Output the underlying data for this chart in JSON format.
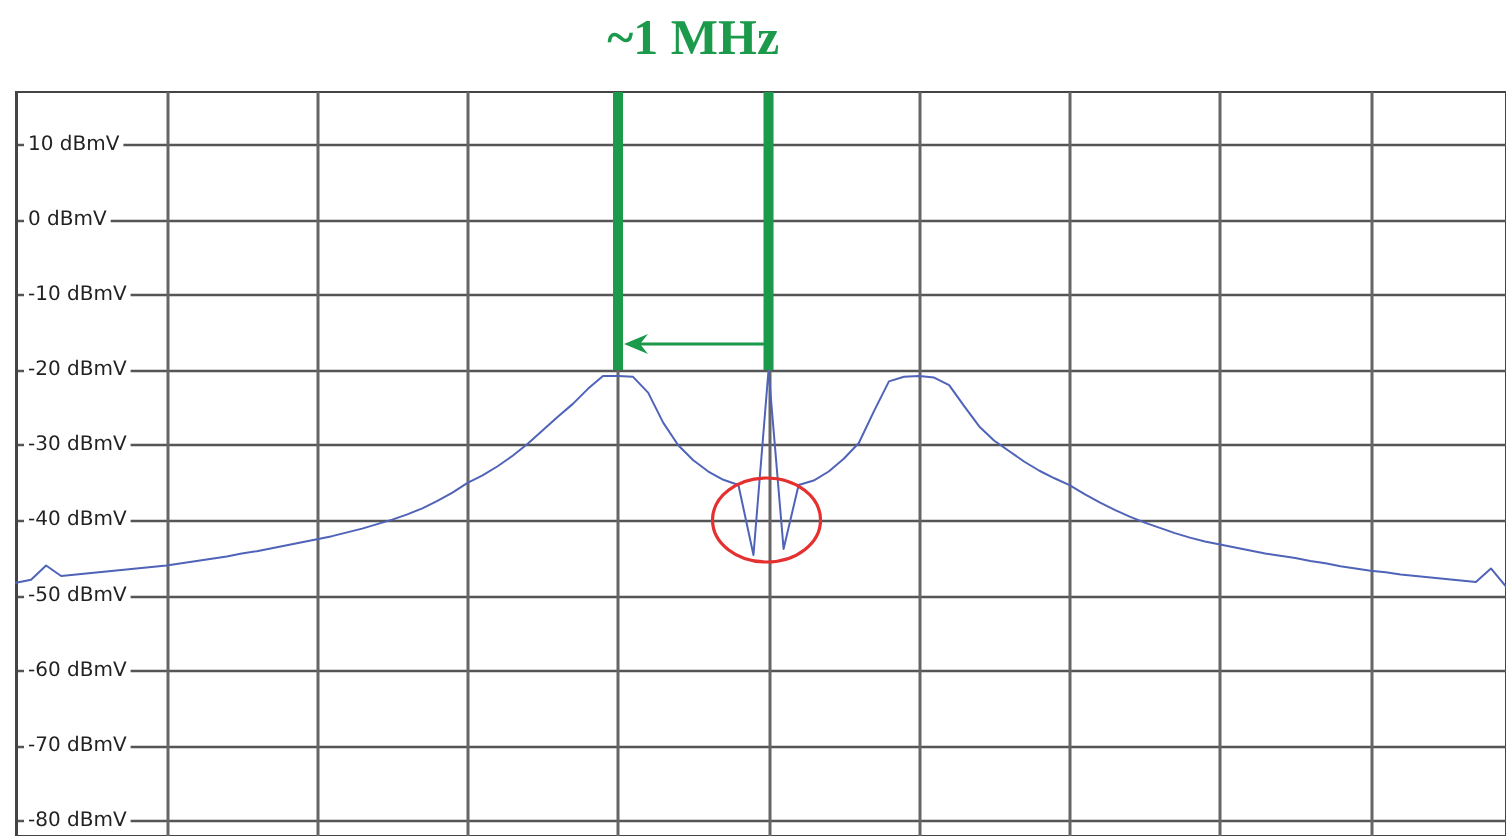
{
  "chart_data": {
    "type": "line",
    "categories": [
      null,
      null,
      null,
      null,
      null,
      null,
      null,
      null,
      null,
      null,
      null,
      null,
      null,
      null,
      null,
      null,
      null,
      null,
      null,
      null,
      null,
      null,
      null,
      null,
      null,
      null,
      null,
      null,
      null,
      null,
      null,
      null,
      null,
      null,
      null,
      null,
      null,
      null,
      null,
      null,
      null,
      null,
      null,
      null,
      null,
      null,
      null,
      null,
      null,
      null,
      null,
      null,
      null,
      null,
      null,
      null,
      null,
      null,
      null,
      null,
      null,
      null,
      null,
      null,
      null,
      null,
      null,
      null,
      null,
      null,
      null,
      null,
      null,
      null,
      null,
      null,
      null,
      null,
      null,
      null,
      null,
      null,
      null,
      null,
      null,
      null,
      null,
      null,
      null,
      null,
      null,
      null,
      null,
      null,
      null,
      null,
      null,
      null,
      null,
      null
    ],
    "series": [
      {
        "color": "#4f63b8",
        "values": [
          -48.3,
          -47.9,
          -46.0,
          -47.4,
          -47.2,
          -47.0,
          -46.8,
          -46.6,
          -46.4,
          -46.2,
          -46.0,
          -45.7,
          -45.4,
          -45.1,
          -44.8,
          -44.4,
          -44.1,
          -43.7,
          -43.3,
          -42.9,
          -42.5,
          -42.1,
          -41.6,
          -41.1,
          -40.5,
          -39.9,
          -39.2,
          -38.4,
          -37.4,
          -36.3,
          -35.0,
          -34.0,
          -32.8,
          -31.4,
          -29.8,
          -28.0,
          -26.2,
          -24.5,
          -22.5,
          -20.8,
          -20.8,
          -20.9,
          -23.0,
          -27.0,
          -30.0,
          -32.0,
          -33.5,
          -34.6,
          -35.3,
          -44.6,
          -20.0,
          -43.8,
          -35.3,
          -34.7,
          -33.5,
          -31.8,
          -29.7,
          -25.5,
          -21.5,
          -20.9,
          -20.8,
          -21.0,
          -22.0,
          -24.8,
          -27.5,
          -29.4,
          -30.8,
          -32.2,
          -33.4,
          -34.4,
          -35.3,
          -36.5,
          -37.6,
          -38.6,
          -39.5,
          -40.3,
          -41.0,
          -41.7,
          -42.3,
          -42.8,
          -43.2,
          -43.6,
          -44.0,
          -44.4,
          -44.7,
          -45.0,
          -45.4,
          -45.7,
          -46.1,
          -46.4,
          -46.7,
          -46.9,
          -47.2,
          -47.4,
          -47.6,
          -47.8,
          -48.0,
          -48.2,
          -46.4,
          -48.8
        ]
      }
    ],
    "ylim": [
      -82,
      17
    ],
    "yticks": [
      {
        "value": 10,
        "label": "10 dBmV"
      },
      {
        "value": 0,
        "label": "0 dBmV"
      },
      {
        "value": -10,
        "label": "-10 dBmV"
      },
      {
        "value": -20,
        "label": "-20 dBmV"
      },
      {
        "value": -30,
        "label": "-30 dBmV"
      },
      {
        "value": -40,
        "label": "-40 dBmV"
      },
      {
        "value": -50,
        "label": "-50 dBmV"
      },
      {
        "value": -60,
        "label": "-60 dBmV"
      },
      {
        "value": -70,
        "label": "-70 dBmV"
      },
      {
        "value": -80,
        "label": "-80 dBmV"
      }
    ],
    "annotations": [
      "~1 MHz"
    ],
    "grid": true,
    "tick_labels": "y",
    "line_style": "solid"
  }
}
